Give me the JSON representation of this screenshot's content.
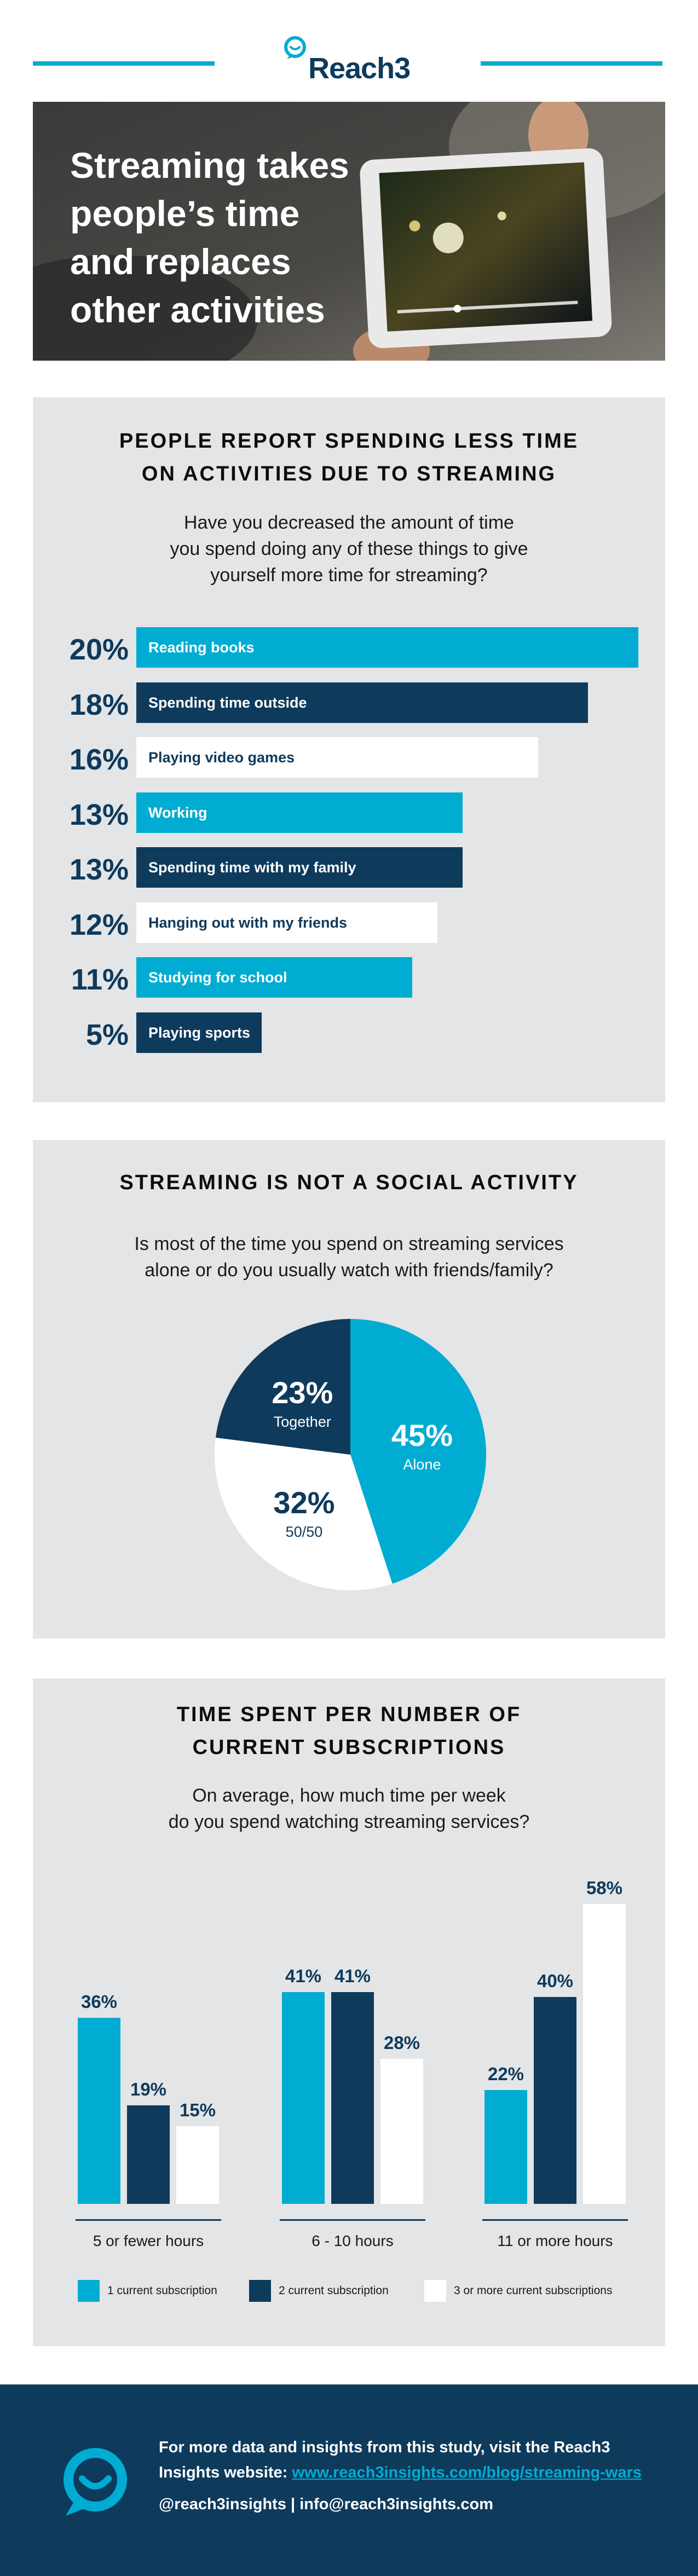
{
  "brand": {
    "name": "Reach3",
    "accent": "#00acd1",
    "navy": "#0e3a5c"
  },
  "hero": {
    "title_lines": [
      "Streaming takes",
      "people’s time",
      "and replaces",
      "other activities"
    ]
  },
  "section1": {
    "title_lines": [
      "PEOPLE REPORT SPENDING LESS TIME",
      "ON ACTIVITIES DUE TO STREAMING"
    ],
    "subtitle_lines": [
      "Have you decreased the amount of time",
      "you spend doing any of these things to give",
      "yourself more time for streaming?"
    ]
  },
  "section2": {
    "title": "STREAMING IS NOT A SOCIAL ACTIVITY",
    "subtitle_lines": [
      "Is most of the time you spend on streaming services",
      "alone or do you usually watch with friends/family?"
    ]
  },
  "section3": {
    "title_lines": [
      "TIME SPENT PER NUMBER OF",
      "CURRENT SUBSCRIPTIONS"
    ],
    "subtitle_lines": [
      "On average, how much time per week",
      "do you spend watching streaming services?"
    ]
  },
  "chart_data": [
    {
      "type": "bar",
      "orientation": "horizontal",
      "categories": [
        "Reading books",
        "Spending time outside",
        "Playing video games",
        "Working",
        "Spending time with my family",
        "Hanging out with my friends",
        "Studying for school",
        "Playing sports"
      ],
      "values": [
        20,
        18,
        16,
        13,
        13,
        12,
        11,
        5
      ],
      "value_labels": [
        "20%",
        "18%",
        "16%",
        "13%",
        "13%",
        "12%",
        "11%",
        "5%"
      ],
      "colors": [
        "#00acd1",
        "#0e3a5c",
        "#ffffff",
        "#00acd1",
        "#0e3a5c",
        "#ffffff",
        "#00acd1",
        "#0e3a5c"
      ],
      "xlim": [
        0,
        20
      ]
    },
    {
      "type": "pie",
      "categories": [
        "Alone",
        "50/50",
        "Together"
      ],
      "values": [
        45,
        32,
        23
      ],
      "value_labels": [
        "45%",
        "32%",
        "23%"
      ],
      "colors": [
        "#00acd1",
        "#ffffff",
        "#0e3a5c"
      ]
    },
    {
      "type": "bar",
      "orientation": "vertical",
      "categories": [
        "5 or fewer hours",
        "6 - 10 hours",
        "11 or more hours"
      ],
      "series": [
        {
          "name": "1 current subscription",
          "values": [
            36,
            41,
            22
          ],
          "labels": [
            "36%",
            "41%",
            "22%"
          ],
          "color": "#00acd1"
        },
        {
          "name": "2 current subscription",
          "values": [
            19,
            41,
            40
          ],
          "labels": [
            "19%",
            "41%",
            "40%"
          ],
          "color": "#0e3a5c"
        },
        {
          "name": "3 or more current subscriptions",
          "values": [
            15,
            28,
            58
          ],
          "labels": [
            "15%",
            "28%",
            "58%"
          ],
          "color": "#ffffff"
        }
      ],
      "ylim": [
        0,
        58
      ],
      "legend": "bottom"
    }
  ],
  "footer": {
    "line1": "For more data and insights from this study, visit the Reach3",
    "line2_prefix": "Insights website: ",
    "link": "www.reach3insights.com/blog/streaming-wars",
    "contact": "@reach3insights | info@reach3insights.com"
  }
}
